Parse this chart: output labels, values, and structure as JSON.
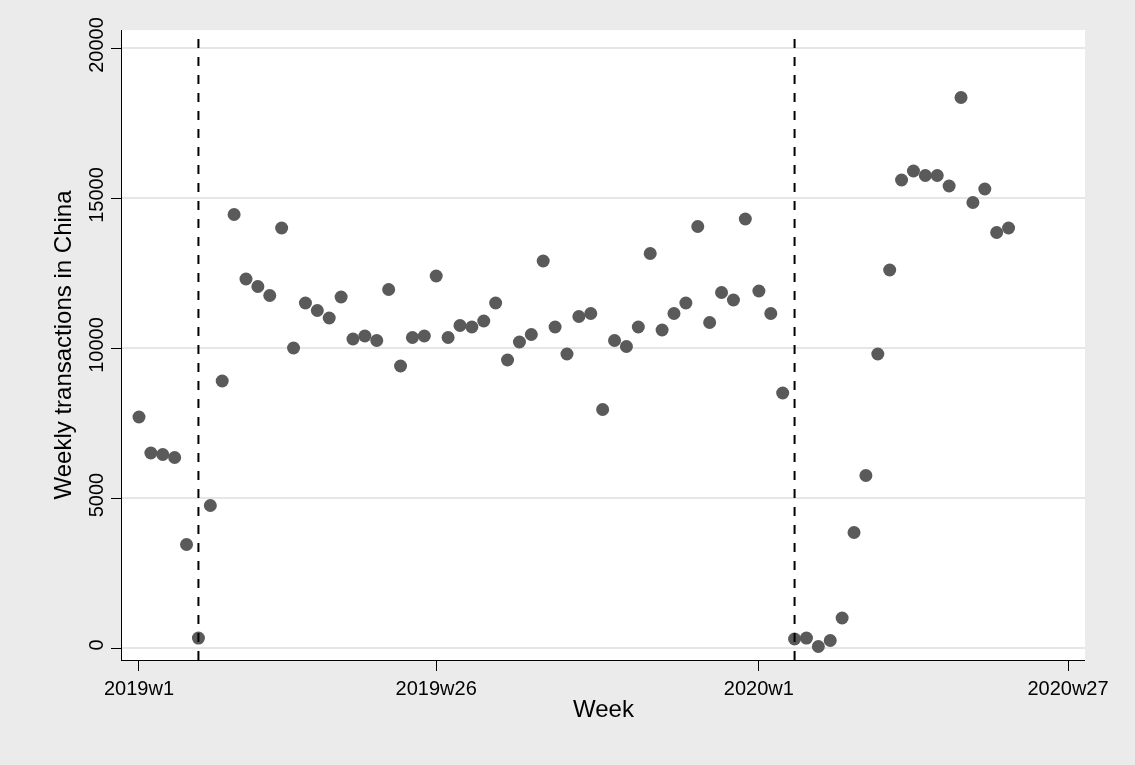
{
  "chart_data": {
    "type": "scatter",
    "xlabel": "Week",
    "ylabel": "Weekly transactions in China",
    "x": [
      "2019-01-01",
      "2019-01-08",
      "2019-01-15",
      "2019-01-22",
      "2019-01-29",
      "2019-02-05",
      "2019-02-12",
      "2019-02-19",
      "2019-02-26",
      "2019-03-05",
      "2019-03-12",
      "2019-03-19",
      "2019-03-26",
      "2019-04-02",
      "2019-04-09",
      "2019-04-16",
      "2019-04-23",
      "2019-04-30",
      "2019-05-07",
      "2019-05-14",
      "2019-05-21",
      "2019-05-28",
      "2019-06-04",
      "2019-06-11",
      "2019-06-18",
      "2019-06-25",
      "2019-07-02",
      "2019-07-09",
      "2019-07-16",
      "2019-07-23",
      "2019-07-30",
      "2019-08-06",
      "2019-08-13",
      "2019-08-20",
      "2019-08-27",
      "2019-09-03",
      "2019-09-10",
      "2019-09-17",
      "2019-09-24",
      "2019-10-01",
      "2019-10-08",
      "2019-10-15",
      "2019-10-22",
      "2019-10-29",
      "2019-11-05",
      "2019-11-12",
      "2019-11-19",
      "2019-11-26",
      "2019-12-03",
      "2019-12-10",
      "2019-12-17",
      "2019-12-24",
      "2020-01-01",
      "2020-01-08",
      "2020-01-15",
      "2020-01-22",
      "2020-01-29",
      "2020-02-05",
      "2020-02-12",
      "2020-02-19",
      "2020-02-26",
      "2020-03-04",
      "2020-03-11",
      "2020-03-18",
      "2020-03-25",
      "2020-04-01",
      "2020-04-08",
      "2020-04-15",
      "2020-04-22",
      "2020-04-29",
      "2020-05-06",
      "2020-05-13",
      "2020-05-20",
      "2020-05-27"
    ],
    "series": [
      {
        "color": "#5a5a5a",
        "values": [
          7700,
          6500,
          6450,
          6350,
          3450,
          330,
          4750,
          8900,
          14450,
          12300,
          12050,
          11750,
          14000,
          10000,
          11500,
          11250,
          11000,
          11700,
          10300,
          10400,
          10250,
          11950,
          9400,
          10350,
          10400,
          12400,
          10350,
          10750,
          10700,
          10900,
          11500,
          9600,
          10200,
          10450,
          12900,
          10700,
          9800,
          11050,
          11150,
          7950,
          10250,
          10050,
          10700,
          13150,
          10600,
          11150,
          11500,
          14050,
          10850,
          11850,
          11600,
          14300,
          11900,
          11150,
          8500,
          300,
          330,
          50,
          250,
          1000,
          3850,
          5750,
          9800,
          12600,
          15600,
          15900,
          15750,
          15750,
          15400,
          18350,
          14850,
          15300,
          13850,
          14000
        ]
      }
    ],
    "xlim": [
      "2018-12-22",
      "2020-07-11"
    ],
    "ylim": [
      -400,
      20600
    ],
    "xticks": [
      {
        "value": "2019-01-01",
        "label": "2019w1"
      },
      {
        "value": "2019-06-25",
        "label": "2019w26"
      },
      {
        "value": "2020-01-01",
        "label": "2020w1"
      },
      {
        "value": "2020-07-01",
        "label": "2020w27"
      }
    ],
    "yticks": [
      0,
      5000,
      10000,
      15000,
      20000
    ],
    "ref_lines": [
      {
        "axis": "x",
        "value": "2019-02-05",
        "color": "#000000",
        "line_style": "dashed"
      },
      {
        "axis": "x",
        "value": "2020-01-22",
        "color": "#000000",
        "line_style": "dashed"
      }
    ],
    "grid": "y",
    "marker": "circle"
  }
}
